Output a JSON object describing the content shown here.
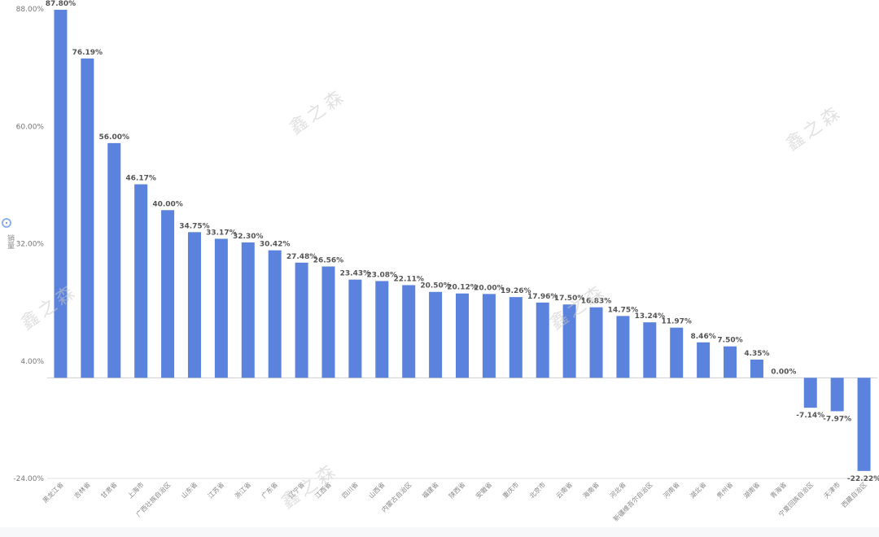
{
  "chart_data": {
    "type": "bar",
    "ylabel": "销量",
    "ylim": [
      -24,
      88
    ],
    "yticks": [
      "88.00%",
      "60.00%",
      "32.00%",
      "4.00%",
      "-24.00%"
    ],
    "ytick_values": [
      88,
      60,
      32,
      4,
      -24
    ],
    "categories": [
      "黑龙江省",
      "吉林省",
      "甘肃省",
      "上海市",
      "广西壮族自治区",
      "山东省",
      "江苏省",
      "浙江省",
      "广东省",
      "辽宁省",
      "江西省",
      "四川省",
      "山西省",
      "内蒙古自治区",
      "福建省",
      "陕西省",
      "安徽省",
      "重庆市",
      "北京市",
      "云南省",
      "海南省",
      "河北省",
      "新疆维吾尔自治区",
      "河南省",
      "湖北省",
      "贵州省",
      "湖南省",
      "青海省",
      "宁夏回族自治区",
      "天津市",
      "西藏自治区"
    ],
    "values": [
      87.8,
      76.19,
      56.0,
      46.17,
      40.0,
      34.75,
      33.17,
      32.3,
      30.42,
      27.48,
      26.56,
      23.43,
      23.08,
      22.11,
      20.5,
      20.12,
      20.0,
      19.26,
      17.96,
      17.5,
      16.83,
      14.75,
      13.24,
      11.97,
      8.46,
      7.5,
      4.35,
      0.0,
      -7.14,
      -7.97,
      -22.22
    ],
    "value_labels": [
      "87.80%",
      "76.19%",
      "56.00%",
      "46.17%",
      "40.00%",
      "34.75%",
      "33.17%",
      "32.30%",
      "30.42%",
      "27.48%",
      "26.56%",
      "23.43%",
      "23.08%",
      "22.11%",
      "20.50%",
      "20.12%",
      "20.00%",
      "19.26%",
      "17.96%",
      "17.50%",
      "16.83%",
      "14.75%",
      "13.24%",
      "11.97%",
      "8.46%",
      "7.50%",
      "4.35%",
      "0.00%",
      "-7.14%",
      "-7.97%",
      "-22.22%"
    ],
    "bar_color": "#5b82dc",
    "grid": false
  },
  "watermark_text": "鑫之森"
}
